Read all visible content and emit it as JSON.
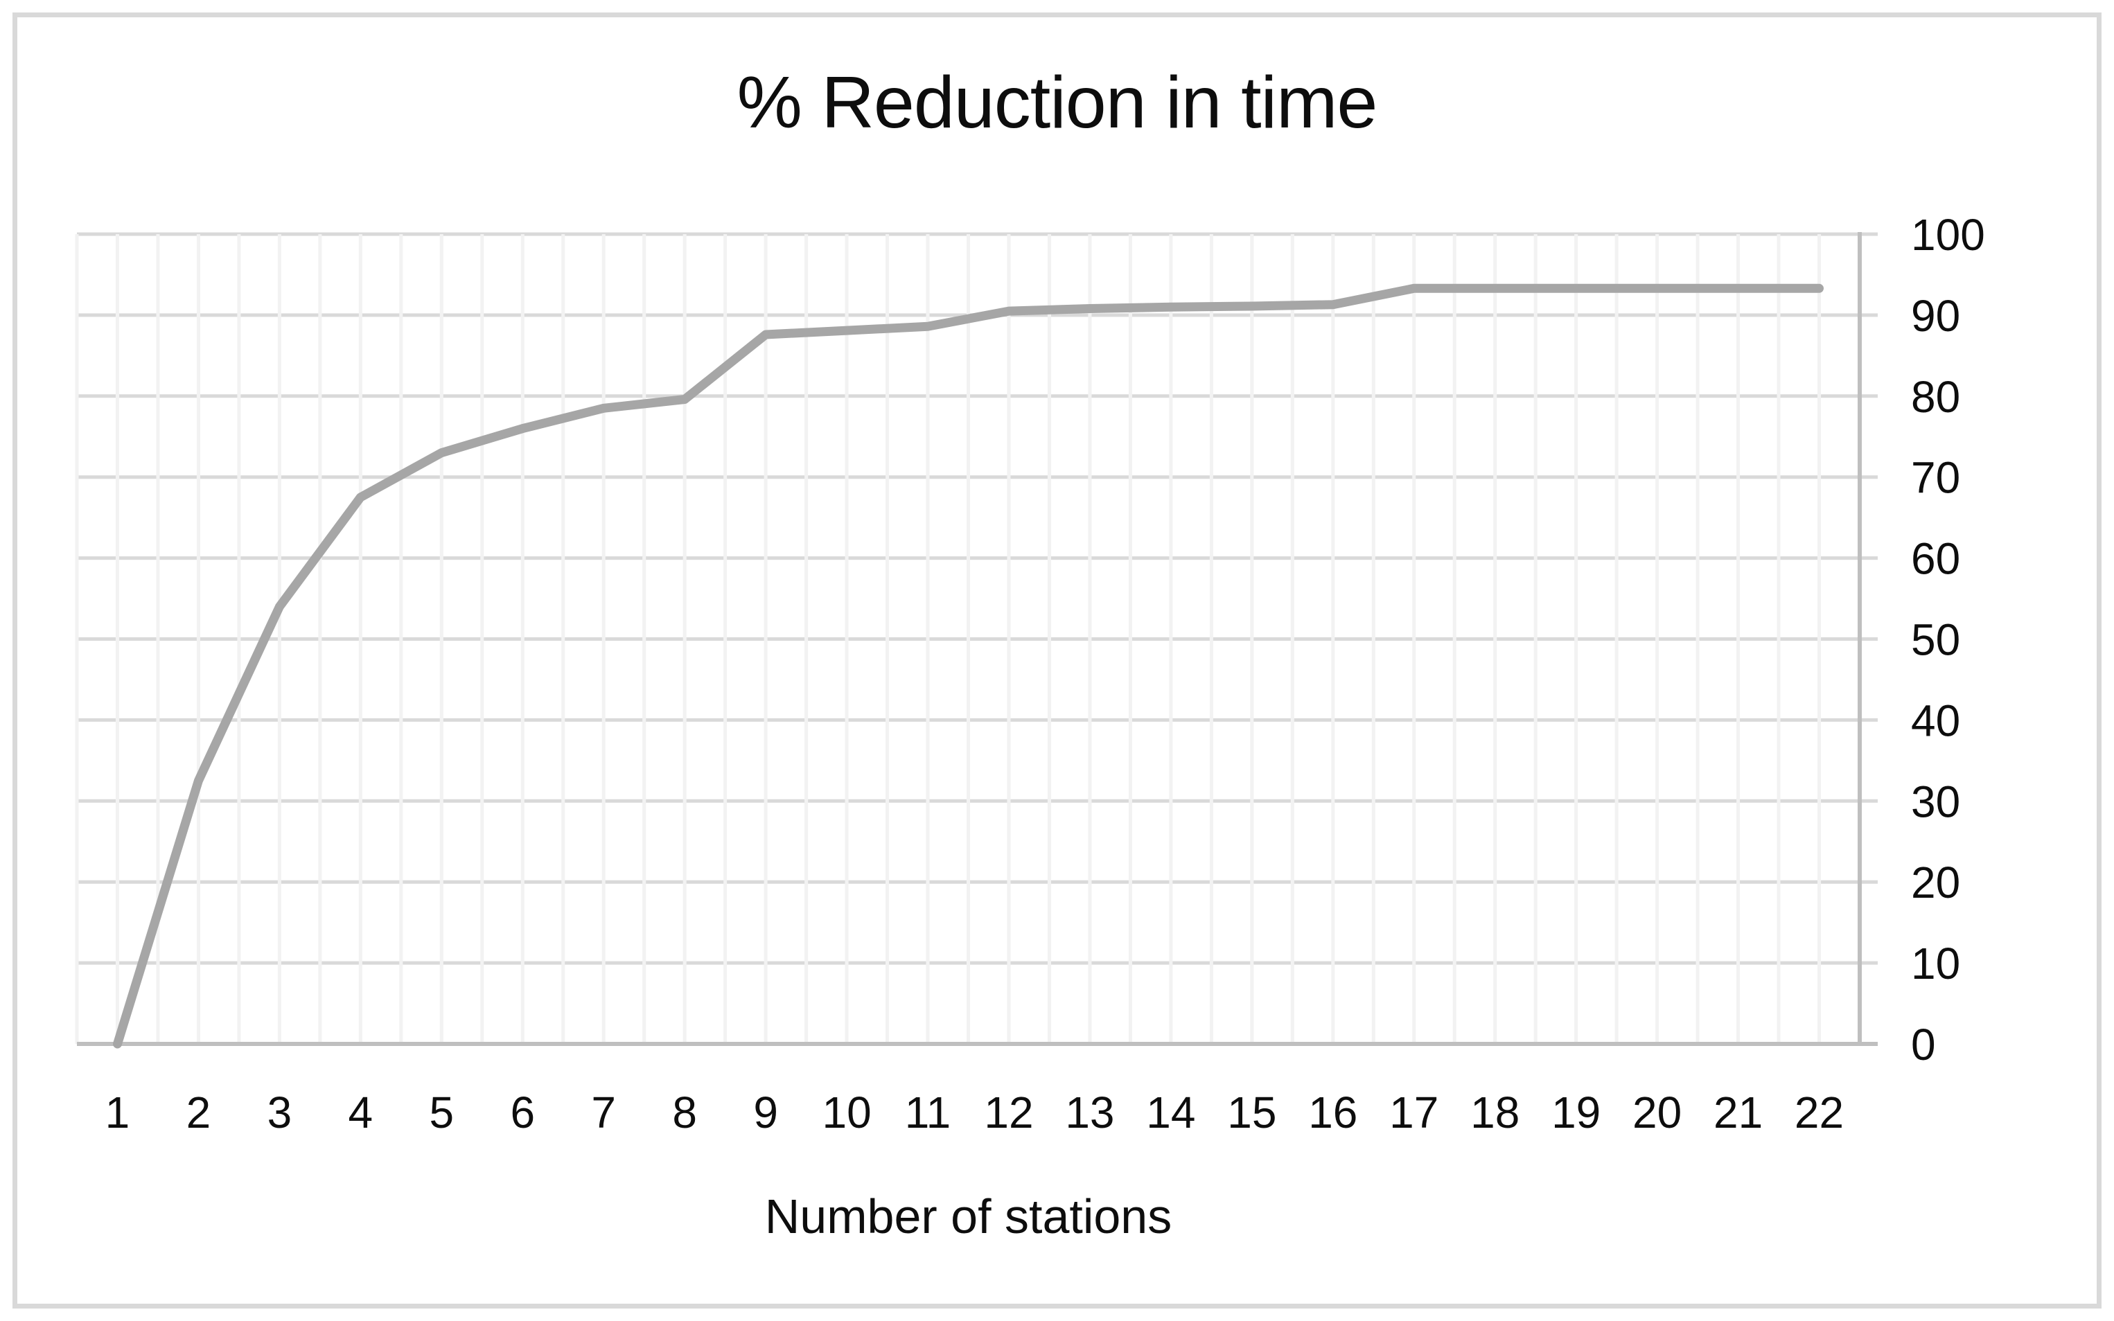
{
  "chart_data": {
    "type": "line",
    "title": "% Reduction in time",
    "xlabel": "Number of stations",
    "ylabel": "",
    "categories": [
      1,
      2,
      3,
      4,
      5,
      6,
      7,
      8,
      9,
      10,
      11,
      12,
      13,
      14,
      15,
      16,
      17,
      18,
      19,
      20,
      21,
      22
    ],
    "values": [
      0,
      32.5,
      54,
      67.5,
      73,
      76,
      78.5,
      79.6,
      87.6,
      88.1,
      88.6,
      90.5,
      90.8,
      91,
      91.1,
      91.3,
      93.3,
      93.3,
      93.3,
      93.3,
      93.3,
      93.3
    ],
    "series": [
      {
        "name": "% Reduction in time",
        "values": [
          0,
          32.5,
          54,
          67.5,
          73,
          76,
          78.5,
          79.6,
          87.6,
          88.1,
          88.6,
          90.5,
          90.8,
          91,
          91.1,
          91.3,
          93.3,
          93.3,
          93.3,
          93.3,
          93.3,
          93.3
        ]
      }
    ],
    "ylim": [
      0,
      100
    ],
    "y_ticks": [
      0,
      10,
      20,
      30,
      40,
      50,
      60,
      70,
      80,
      90,
      100
    ],
    "y_tick_labels": [
      "0",
      "10",
      "20",
      "30",
      "40",
      "50",
      "60",
      "70",
      "80",
      "90",
      "100"
    ],
    "x_tick_labels": [
      "1",
      "2",
      "3",
      "4",
      "5",
      "6",
      "7",
      "8",
      "9",
      "10",
      "11",
      "12",
      "13",
      "14",
      "15",
      "16",
      "17",
      "18",
      "19",
      "20",
      "21",
      "22"
    ],
    "y_axis_side": "right",
    "grid": true,
    "legend": false,
    "colors": {
      "series_line": "#a6a6a6",
      "h_gridline": "#d9d9d9",
      "v_gridline": "#f2f2f2",
      "axis_line": "#bfbfbf",
      "text": "#0d0d0d",
      "frame_border": "#d9d9d9",
      "background": "#ffffff"
    }
  }
}
